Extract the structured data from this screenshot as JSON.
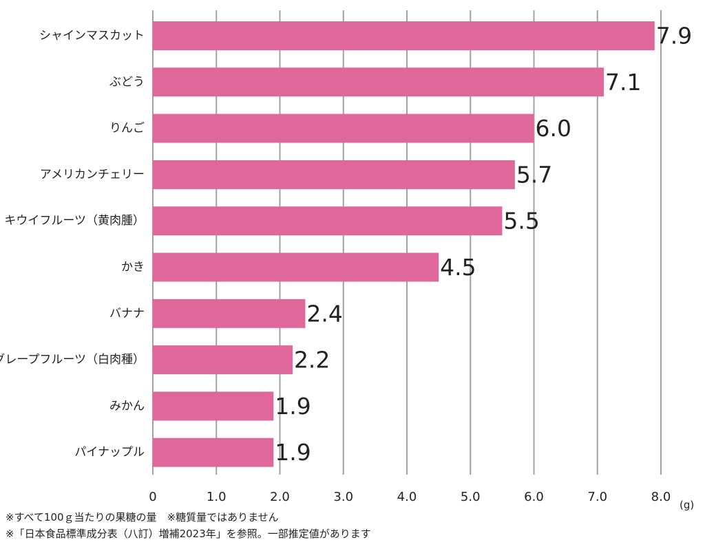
{
  "chart_data": {
    "type": "bar",
    "orientation": "horizontal",
    "categories": [
      "シャインマスカット",
      "ぶどう",
      "りんご",
      "アメリカンチェリー",
      "キウイフルーツ（黄肉腫）",
      "かき",
      "バナナ",
      "グレープフルーツ（白肉種）",
      "みかん",
      "パイナップル"
    ],
    "values": [
      7.9,
      7.1,
      6.0,
      5.7,
      5.5,
      4.5,
      2.4,
      2.2,
      1.9,
      1.9
    ],
    "value_labels": [
      "7.9",
      "7.1",
      "6.0",
      "5.7",
      "5.5",
      "4.5",
      "2.4",
      "2.2",
      "1.9",
      "1.9"
    ],
    "xlim": [
      0,
      8.0
    ],
    "xticks": [
      "0",
      "1.0",
      "2.0",
      "3.0",
      "4.0",
      "5.0",
      "6.0",
      "7.0",
      "8.0"
    ],
    "xunit": "(g)",
    "grid": true,
    "bar_color": "#e0679a",
    "grid_color": "#a0a0a0"
  },
  "notes": [
    "※すべて100ｇ当たりの果糖の量　※糖質量ではありません",
    "※「日本食品標準成分表（八訂）増補2023年」を参照。一部推定値があります"
  ]
}
